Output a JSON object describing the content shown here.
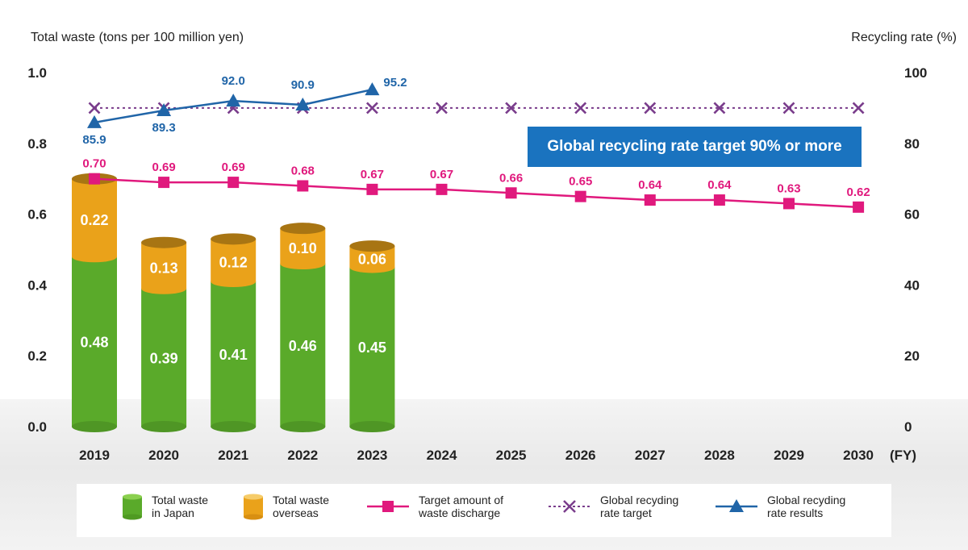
{
  "chart_data": {
    "type": "bar",
    "title": "",
    "xlabel": "(FY)",
    "ylabel_left": "Total waste (tons per 100 million yen)",
    "ylabel_right": "Recycling rate (%)",
    "categories": [
      "2019",
      "2020",
      "2021",
      "2022",
      "2023",
      "2024",
      "2025",
      "2026",
      "2027",
      "2028",
      "2029",
      "2030"
    ],
    "ylim_left": [
      0,
      1.0
    ],
    "yticks_left": [
      "0.0",
      "0.2",
      "0.4",
      "0.6",
      "0.8",
      "1.0"
    ],
    "ylim_right": [
      0,
      100
    ],
    "yticks_right": [
      "0",
      "20",
      "40",
      "60",
      "80",
      "100"
    ],
    "grid": false,
    "legend_position": "bottom",
    "stacked_series": [
      {
        "name": "Total waste in Japan",
        "values": [
          0.48,
          0.39,
          0.41,
          0.46,
          0.45
        ],
        "labels": [
          "0.48",
          "0.39",
          "0.41",
          "0.46",
          "0.45"
        ],
        "color": "#5aaa2a"
      },
      {
        "name": "Total waste overseas",
        "values": [
          0.22,
          0.13,
          0.12,
          0.1,
          0.06
        ],
        "labels": [
          "0.22",
          "0.13",
          "0.12",
          "0.10",
          "0.06"
        ],
        "color": "#eaa21a"
      }
    ],
    "line_series": [
      {
        "name": "Target amount of waste discharge",
        "axis": "left",
        "marker": "square",
        "style": "solid",
        "color": "#e0197d",
        "values": [
          0.7,
          0.69,
          0.69,
          0.68,
          0.67,
          0.67,
          0.66,
          0.65,
          0.64,
          0.64,
          0.63,
          0.62
        ],
        "labels": [
          "0.70",
          "0.69",
          "0.69",
          "0.68",
          "0.67",
          "0.67",
          "0.66",
          "0.65",
          "0.64",
          "0.64",
          "0.63",
          "0.62"
        ]
      },
      {
        "name": "Global recyding rate target",
        "axis": "right",
        "marker": "x",
        "style": "dotted",
        "color": "#7a3d8c",
        "values": [
          90,
          90,
          90,
          90,
          90,
          90,
          90,
          90,
          90,
          90,
          90,
          90
        ],
        "labels": []
      },
      {
        "name": "Global recyding rate results",
        "axis": "right",
        "marker": "triangle",
        "style": "solid",
        "color": "#2065a8",
        "values": [
          85.9,
          89.3,
          92.0,
          90.9,
          95.2
        ],
        "labels": [
          "85.9",
          "89.3",
          "92.0",
          "90.9",
          "95.2"
        ],
        "label_positions": [
          "below",
          "below",
          "above",
          "above",
          "right"
        ]
      }
    ],
    "annotations": [
      "Global recycling rate target 90% or more"
    ]
  },
  "legend": {
    "items": [
      {
        "line1": "Total waste",
        "line2": "in Japan"
      },
      {
        "line1": "Total waste",
        "line2": "overseas"
      },
      {
        "line1": "Target amount of",
        "line2": "waste discharge"
      },
      {
        "line1": "Global recyding",
        "line2": "rate target"
      },
      {
        "line1": "Global recyding",
        "line2": "rate results"
      }
    ]
  },
  "colors": {
    "japan": "#5aaa2a",
    "overseas": "#eaa21a",
    "target_discharge": "#e0197d",
    "rate_target": "#7a3d8c",
    "rate_results": "#2065a8",
    "callout": "#1a73bf"
  }
}
